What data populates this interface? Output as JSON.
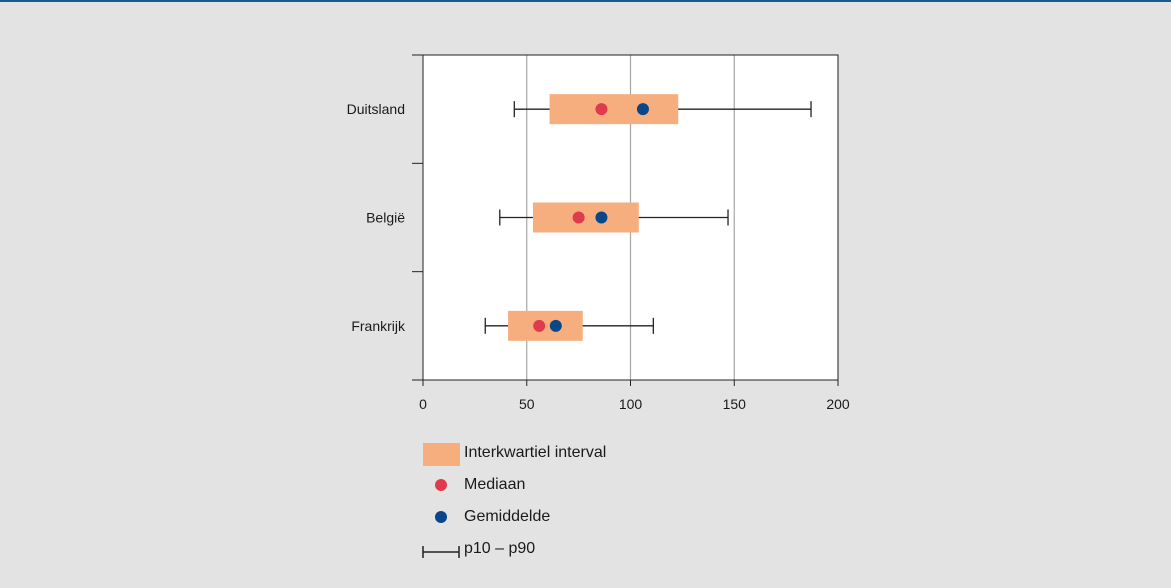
{
  "chart_data": {
    "type": "boxplot",
    "orientation": "horizontal",
    "xlim": [
      0,
      200
    ],
    "xticks": [
      "0",
      "50",
      "100",
      "150",
      "200"
    ],
    "grid": "vertical",
    "categories": [
      {
        "label": "Duitsland",
        "p10": 44,
        "q1": 61,
        "median": 86,
        "mean": 106,
        "q3": 123,
        "p90": 187
      },
      {
        "label": "België",
        "p10": 37,
        "q1": 53,
        "median": 75,
        "mean": 86,
        "q3": 104,
        "p90": 147
      },
      {
        "label": "Frankrijk",
        "p10": 30,
        "q1": 41,
        "median": 56,
        "mean": 64,
        "q3": 77,
        "p90": 111
      }
    ],
    "colors": {
      "box": "#f7ae7e",
      "median": "#df3b4d",
      "mean": "#0a4688",
      "whisker": "#222222",
      "grid": "#a6a6a6",
      "plot_bg": "#ffffff",
      "page_bg": "#e3e3e3"
    },
    "legend": {
      "position": "below",
      "items": [
        {
          "label": "Interkwartiel interval",
          "icon": "box-swatch"
        },
        {
          "label": "Mediaan",
          "icon": "red-dot"
        },
        {
          "label": "Gemiddelde",
          "icon": "blue-dot"
        },
        {
          "label": "p10 – p90",
          "icon": "whisker-symbol"
        }
      ]
    }
  }
}
